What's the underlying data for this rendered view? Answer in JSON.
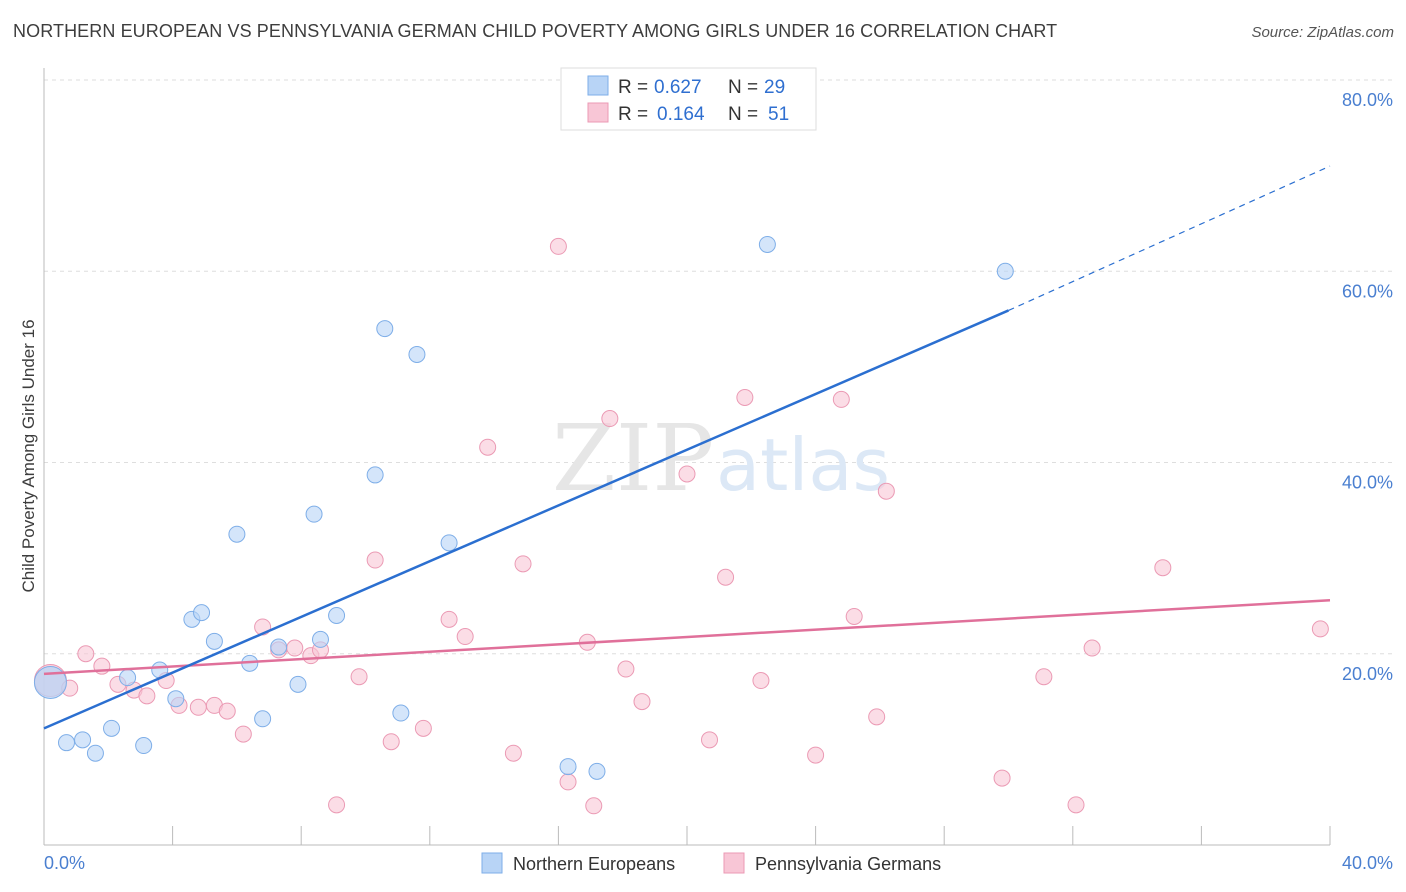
{
  "header": {
    "title": "NORTHERN EUROPEAN VS PENNSYLVANIA GERMAN CHILD POVERTY AMONG GIRLS UNDER 16 CORRELATION CHART",
    "source": "Source: ZipAtlas.com"
  },
  "watermark": {
    "zip": "ZIP",
    "atlas": "atlas"
  },
  "legend": {
    "r_label": "R =",
    "n_label": "N =",
    "rows": [
      {
        "r": "0.627",
        "n": "29"
      },
      {
        "r": "0.164",
        "n": "51"
      }
    ]
  },
  "colors": {
    "blue_fill": "#b8d4f6",
    "blue_stroke": "#7eaee8",
    "blue_line": "#2b6fd0",
    "pink_fill": "#f8c6d6",
    "pink_stroke": "#eb9ab4",
    "pink_line": "#e0709a"
  },
  "chart_data": {
    "type": "scatter",
    "title": "NORTHERN EUROPEAN VS PENNSYLVANIA GERMAN CHILD POVERTY AMONG GIRLS UNDER 16 CORRELATION CHART",
    "xlabel": "",
    "ylabel": "Child Poverty Among Girls Under 16",
    "xlim": [
      0,
      40
    ],
    "ylim": [
      0,
      80
    ],
    "x_tick_labels": [
      "0.0%",
      "40.0%"
    ],
    "y_tick_labels": [
      "20.0%",
      "40.0%",
      "60.0%",
      "80.0%"
    ],
    "y_ticks": [
      20,
      40,
      60,
      80
    ],
    "series": [
      {
        "name": "Northern Europeans",
        "color": "#b8d4f6",
        "r": 0.627,
        "n": 29,
        "trend": {
          "x": [
            0,
            30
          ],
          "y": [
            12.2,
            55.9
          ],
          "dashed_to": [
            40,
            71
          ]
        },
        "points": [
          [
            0.2,
            17.0,
            "large"
          ],
          [
            0.7,
            10.7
          ],
          [
            1.2,
            11.0
          ],
          [
            1.6,
            9.6
          ],
          [
            2.1,
            12.2
          ],
          [
            2.6,
            17.5
          ],
          [
            3.1,
            10.4
          ],
          [
            3.6,
            18.3
          ],
          [
            4.1,
            15.3
          ],
          [
            4.6,
            23.6
          ],
          [
            4.9,
            24.3
          ],
          [
            5.3,
            21.3
          ],
          [
            6.0,
            32.5
          ],
          [
            6.4,
            19.0
          ],
          [
            6.8,
            13.2
          ],
          [
            7.3,
            20.7
          ],
          [
            8.6,
            21.5
          ],
          [
            7.9,
            16.8
          ],
          [
            8.4,
            34.6
          ],
          [
            9.1,
            24.0
          ],
          [
            10.3,
            38.7
          ],
          [
            10.6,
            54.0
          ],
          [
            11.1,
            13.8
          ],
          [
            11.6,
            51.3
          ],
          [
            12.6,
            31.6
          ],
          [
            16.3,
            8.2
          ],
          [
            17.2,
            7.7
          ],
          [
            22.5,
            62.8
          ],
          [
            29.9,
            60.0
          ]
        ]
      },
      {
        "name": "Pennsylvania Germans",
        "color": "#f8c6d6",
        "r": 0.164,
        "n": 51,
        "trend": {
          "x": [
            0,
            40
          ],
          "y": [
            17.9,
            25.6
          ]
        },
        "points": [
          [
            0.2,
            17.2,
            "large"
          ],
          [
            0.8,
            16.4
          ],
          [
            1.3,
            20.0
          ],
          [
            1.8,
            18.7
          ],
          [
            2.3,
            16.8
          ],
          [
            2.8,
            16.2
          ],
          [
            3.2,
            15.6
          ],
          [
            3.8,
            17.2
          ],
          [
            4.2,
            14.6
          ],
          [
            4.8,
            14.4
          ],
          [
            5.3,
            14.6
          ],
          [
            5.7,
            14.0
          ],
          [
            6.2,
            11.6
          ],
          [
            6.8,
            22.8
          ],
          [
            7.3,
            20.4
          ],
          [
            7.8,
            20.6
          ],
          [
            8.3,
            19.8
          ],
          [
            8.6,
            20.4
          ],
          [
            9.1,
            4.2
          ],
          [
            9.8,
            17.6
          ],
          [
            10.3,
            29.8
          ],
          [
            10.8,
            10.8
          ],
          [
            11.8,
            12.2
          ],
          [
            12.6,
            23.6
          ],
          [
            13.1,
            21.8
          ],
          [
            13.8,
            41.6
          ],
          [
            14.6,
            9.6
          ],
          [
            14.9,
            29.4
          ],
          [
            16.0,
            62.6
          ],
          [
            16.3,
            6.6
          ],
          [
            16.9,
            21.2
          ],
          [
            17.1,
            4.1
          ],
          [
            17.6,
            44.6
          ],
          [
            18.1,
            18.4
          ],
          [
            18.6,
            15.0
          ],
          [
            20.0,
            38.8
          ],
          [
            20.7,
            11.0
          ],
          [
            21.2,
            28.0
          ],
          [
            21.8,
            46.8
          ],
          [
            22.3,
            17.2
          ],
          [
            24.0,
            9.4
          ],
          [
            24.8,
            46.6
          ],
          [
            25.2,
            23.9
          ],
          [
            25.9,
            13.4
          ],
          [
            26.2,
            37.0
          ],
          [
            29.8,
            7.0
          ],
          [
            31.1,
            17.6
          ],
          [
            32.1,
            4.2
          ],
          [
            32.6,
            20.6
          ],
          [
            34.8,
            29.0
          ],
          [
            39.7,
            22.6
          ]
        ]
      }
    ]
  },
  "bottom_legend": [
    "Northern Europeans",
    "Pennsylvania Germans"
  ]
}
